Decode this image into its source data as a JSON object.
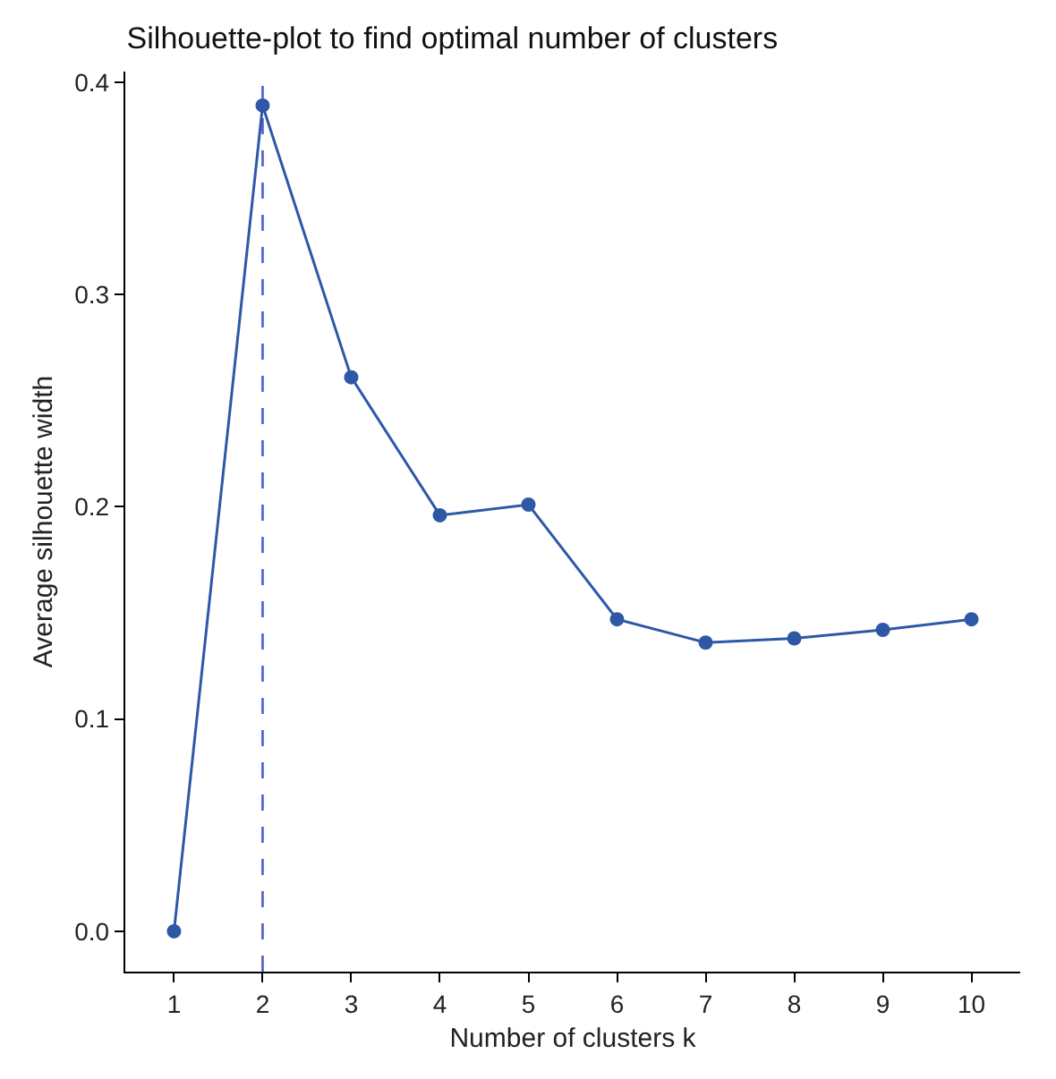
{
  "chart_data": {
    "type": "line",
    "title": "Silhouette-plot to find optimal number of clusters",
    "xlabel": "Number of clusters k",
    "ylabel": "Average silhouette width",
    "x": [
      1,
      2,
      3,
      4,
      5,
      6,
      7,
      8,
      9,
      10
    ],
    "series": [
      {
        "color": "#2e58a6",
        "values": [
          0.0,
          0.389,
          0.261,
          0.196,
          0.201,
          0.147,
          0.136,
          0.138,
          0.142,
          0.147
        ]
      }
    ],
    "xlim": [
      0.45,
      10.55
    ],
    "xticks": [
      1,
      2,
      3,
      4,
      5,
      6,
      7,
      8,
      9,
      10
    ],
    "ylim": [
      -0.019,
      0.405
    ],
    "yticks": [
      {
        "value": 0,
        "label": "0.0"
      },
      0.1,
      0.2,
      0.3,
      0.4
    ],
    "ref_lines": [
      {
        "axis": "x",
        "value": 2,
        "color": "#4a5fd0",
        "line_style": "dashed"
      }
    ],
    "grid": false,
    "marker": "circle",
    "line_style": "solid"
  }
}
